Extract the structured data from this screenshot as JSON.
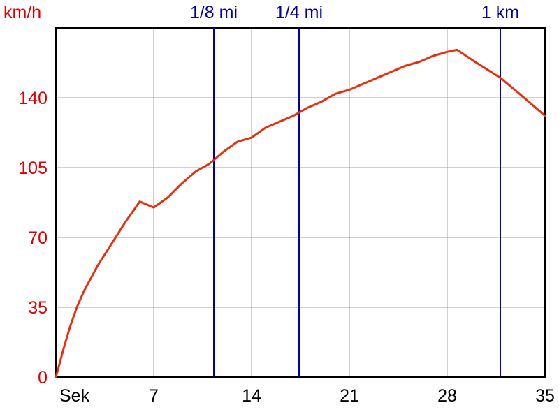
{
  "chart_data": {
    "type": "line",
    "title": "",
    "ylabel": "km/h",
    "xlabel": "Sek",
    "xlim": [
      0,
      35
    ],
    "ylim": [
      0,
      175
    ],
    "x_ticks": [
      0,
      7,
      14,
      21,
      28,
      35
    ],
    "x_tick_labels": [
      "Sek",
      "7",
      "14",
      "21",
      "28",
      "35"
    ],
    "y_ticks": [
      0,
      35,
      70,
      105,
      140
    ],
    "y_tick_labels": [
      "0",
      "35",
      "70",
      "105",
      "140"
    ],
    "grid": true,
    "colors": {
      "series": "#e8300e",
      "ylabels": "#e00000",
      "markers": "#0000aa",
      "grid": "#a0a0a0",
      "axis": "#000000"
    },
    "series": [
      {
        "x": [
          0,
          0.5,
          1,
          1.5,
          2,
          3,
          4,
          5,
          6,
          7,
          8,
          9,
          10,
          11,
          12,
          13,
          14,
          15,
          16,
          17,
          18,
          19,
          20,
          21,
          22,
          23,
          24,
          25,
          26,
          27,
          28,
          28.7,
          30,
          31.8,
          33,
          35
        ],
        "y": [
          0,
          13,
          25,
          35,
          43,
          56,
          67,
          78,
          88,
          85,
          90,
          97,
          103,
          107,
          113,
          118,
          120,
          125,
          128,
          131,
          135,
          138,
          142,
          144,
          147,
          150,
          153,
          156,
          158,
          161,
          163,
          164,
          158,
          150,
          143,
          131
        ]
      }
    ],
    "markers": [
      {
        "label": "1/8 mi",
        "x": 11.3
      },
      {
        "label": "1/4 mi",
        "x": 17.4
      },
      {
        "label": "1 km",
        "x": 31.8
      }
    ]
  }
}
